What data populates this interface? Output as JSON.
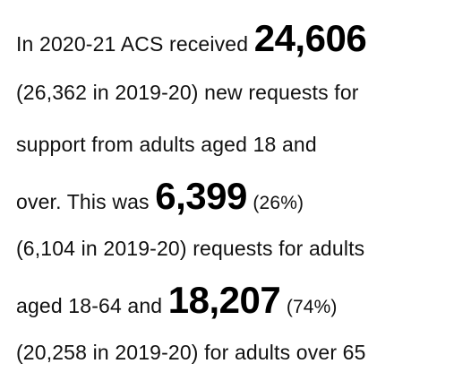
{
  "paragraph": {
    "line1_a": "In 2020-21 ACS received ",
    "total_requests": "24,606",
    "line2": "(26,362 in 2019-20) new requests for",
    "line3": "support from adults aged 18 and",
    "line4_a": "over. This was ",
    "requests_18_64": "6,399",
    "pct_18_64": "(26%)",
    "line5": "(6,104 in 2019-20) requests for adults",
    "line6_a": "aged 18-64 and ",
    "requests_65_plus": "18,207",
    "pct_65_plus": "(74%)",
    "line7": "(20,258 in 2019-20) for adults over 65"
  }
}
